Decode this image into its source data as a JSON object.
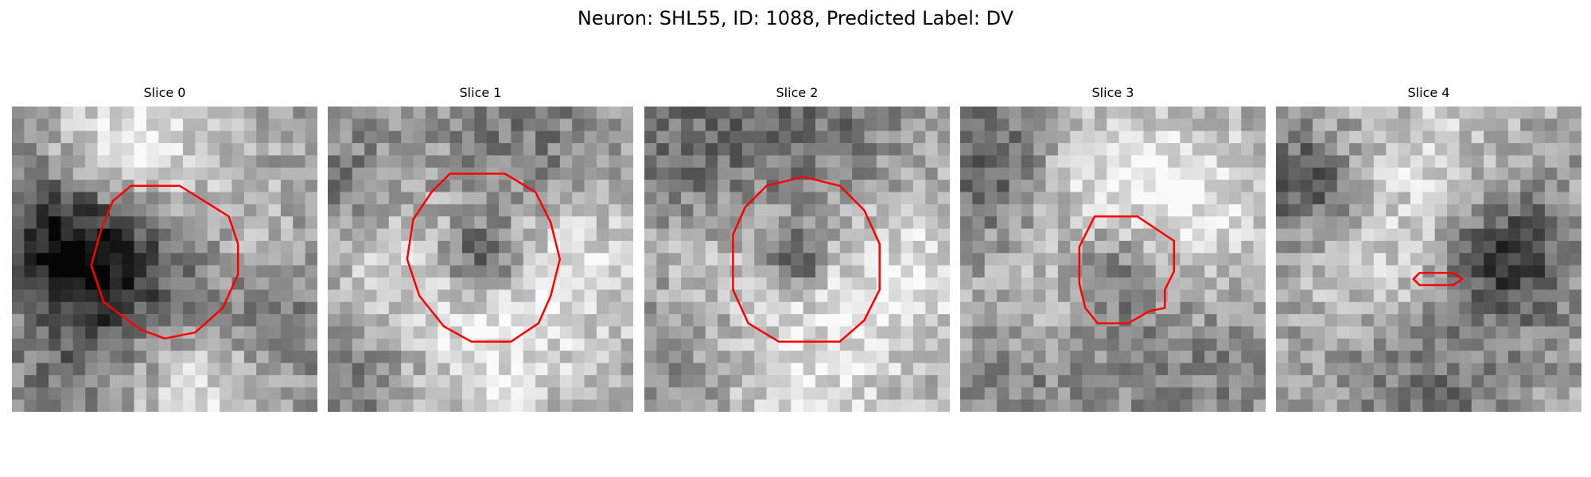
{
  "figure": {
    "title": "Neuron: SHL55, ID: 1088, Predicted Label: DV",
    "overlay_color": "#ff0000",
    "colormap": "grayscale",
    "panels": [
      {
        "title": "Slice 0",
        "seed": 11,
        "dark_blobs": [
          [
            0.25,
            0.5,
            0.25,
            0.5
          ],
          [
            0.5,
            0.5,
            0.35,
            0.3
          ],
          [
            0.9,
            0.7,
            0.3,
            0.2
          ],
          [
            0.2,
            0.85,
            0.3,
            0.2
          ],
          [
            0.05,
            0.35,
            0.25,
            0.25
          ]
        ],
        "bright_blobs": [
          [
            0.7,
            0.45,
            0.3,
            0.2
          ],
          [
            0.6,
            0.9,
            0.3,
            0.25
          ],
          [
            0.4,
            0.15,
            0.3,
            0.35
          ]
        ],
        "contour": [
          [
            0.39,
            0.26
          ],
          [
            0.55,
            0.26
          ],
          [
            0.71,
            0.36
          ],
          [
            0.74,
            0.45
          ],
          [
            0.74,
            0.55
          ],
          [
            0.69,
            0.66
          ],
          [
            0.6,
            0.74
          ],
          [
            0.5,
            0.76
          ],
          [
            0.42,
            0.73
          ],
          [
            0.3,
            0.64
          ],
          [
            0.26,
            0.52
          ],
          [
            0.29,
            0.41
          ],
          [
            0.33,
            0.31
          ]
        ]
      },
      {
        "title": "Slice 1",
        "seed": 23,
        "dark_blobs": [
          [
            0.5,
            0.5,
            0.15,
            0.42
          ],
          [
            0.65,
            0.15,
            0.35,
            0.2
          ],
          [
            0.1,
            0.85,
            0.35,
            0.25
          ],
          [
            0.05,
            0.25,
            0.25,
            0.2
          ]
        ],
        "bright_blobs": [
          [
            0.8,
            0.5,
            0.35,
            0.25
          ],
          [
            0.5,
            0.85,
            0.35,
            0.25
          ],
          [
            0.2,
            0.55,
            0.35,
            0.25
          ]
        ],
        "contour": [
          [
            0.4,
            0.22
          ],
          [
            0.58,
            0.22
          ],
          [
            0.68,
            0.28
          ],
          [
            0.73,
            0.38
          ],
          [
            0.76,
            0.5
          ],
          [
            0.73,
            0.62
          ],
          [
            0.69,
            0.71
          ],
          [
            0.6,
            0.77
          ],
          [
            0.47,
            0.77
          ],
          [
            0.38,
            0.72
          ],
          [
            0.3,
            0.62
          ],
          [
            0.26,
            0.5
          ],
          [
            0.28,
            0.37
          ],
          [
            0.34,
            0.28
          ]
        ]
      },
      {
        "title": "Slice 2",
        "seed": 37,
        "dark_blobs": [
          [
            0.5,
            0.5,
            0.1,
            0.45
          ],
          [
            0.08,
            0.2,
            0.35,
            0.25
          ],
          [
            0.55,
            0.05,
            0.4,
            0.2
          ],
          [
            0.05,
            0.75,
            0.4,
            0.2
          ]
        ],
        "bright_blobs": [
          [
            0.85,
            0.55,
            0.35,
            0.25
          ],
          [
            0.15,
            0.5,
            0.35,
            0.25
          ],
          [
            0.5,
            0.9,
            0.35,
            0.25
          ]
        ],
        "contour": [
          [
            0.4,
            0.26
          ],
          [
            0.52,
            0.23
          ],
          [
            0.64,
            0.26
          ],
          [
            0.72,
            0.34
          ],
          [
            0.77,
            0.45
          ],
          [
            0.77,
            0.6
          ],
          [
            0.72,
            0.7
          ],
          [
            0.64,
            0.77
          ],
          [
            0.44,
            0.77
          ],
          [
            0.34,
            0.71
          ],
          [
            0.29,
            0.6
          ],
          [
            0.29,
            0.42
          ],
          [
            0.33,
            0.33
          ]
        ]
      },
      {
        "title": "Slice 3",
        "seed": 53,
        "dark_blobs": [
          [
            0.1,
            0.2,
            0.3,
            0.3
          ],
          [
            0.5,
            0.55,
            0.2,
            0.3
          ],
          [
            0.75,
            0.85,
            0.3,
            0.15
          ],
          [
            0.2,
            0.9,
            0.3,
            0.15
          ]
        ],
        "bright_blobs": [
          [
            0.45,
            0.2,
            0.3,
            0.25
          ],
          [
            0.8,
            0.35,
            0.35,
            0.25
          ],
          [
            0.3,
            0.6,
            0.3,
            0.15
          ]
        ],
        "contour": [
          [
            0.44,
            0.36
          ],
          [
            0.58,
            0.36
          ],
          [
            0.7,
            0.44
          ],
          [
            0.7,
            0.54
          ],
          [
            0.67,
            0.6
          ],
          [
            0.67,
            0.66
          ],
          [
            0.62,
            0.67
          ],
          [
            0.55,
            0.71
          ],
          [
            0.45,
            0.71
          ],
          [
            0.41,
            0.66
          ],
          [
            0.39,
            0.58
          ],
          [
            0.39,
            0.46
          ]
        ]
      },
      {
        "title": "Slice 4",
        "seed": 71,
        "dark_blobs": [
          [
            0.75,
            0.5,
            0.25,
            0.45
          ],
          [
            0.1,
            0.25,
            0.2,
            0.35
          ],
          [
            0.5,
            0.9,
            0.35,
            0.2
          ]
        ],
        "bright_blobs": [
          [
            0.4,
            0.5,
            0.35,
            0.2
          ],
          [
            0.5,
            0.12,
            0.3,
            0.15
          ]
        ],
        "contour": [
          [
            0.47,
            0.545
          ],
          [
            0.58,
            0.545
          ],
          [
            0.61,
            0.565
          ],
          [
            0.58,
            0.585
          ],
          [
            0.47,
            0.585
          ],
          [
            0.45,
            0.565
          ]
        ]
      }
    ]
  }
}
